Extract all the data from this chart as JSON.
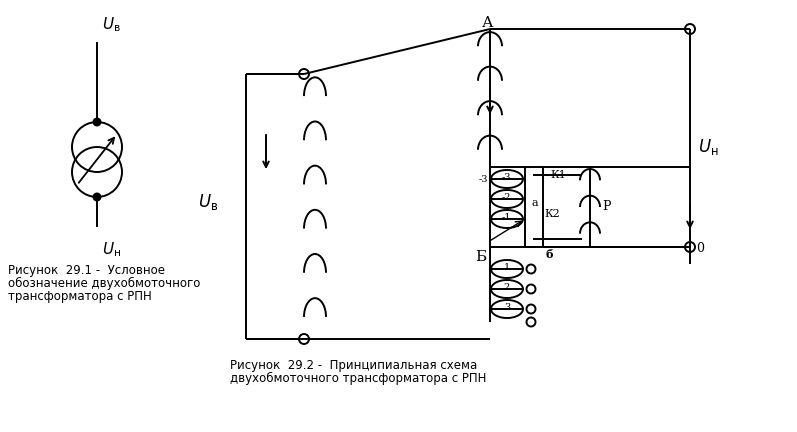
{
  "bg_color": "#ffffff",
  "line_color": "#000000",
  "fig_width": 7.97,
  "fig_height": 4.32,
  "caption1_lines": [
    "Рисунок  29.1 -  Условное",
    "обозначение двухобмоточного",
    "трансформатора с РПН"
  ],
  "caption2_lines": [
    "Рисунок  29.2 -  Принципиальная схема",
    "двухобмоточного трансформатора с РПН"
  ]
}
